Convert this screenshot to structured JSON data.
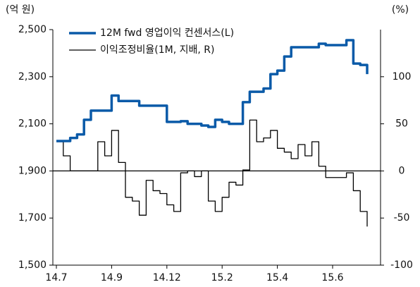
{
  "chart_data": {
    "type": "line",
    "ylabel": "(억 원)",
    "y2label": "(%)",
    "categories": [
      "14.7",
      null,
      null,
      null,
      null,
      null,
      null,
      null,
      "14.9",
      null,
      null,
      null,
      null,
      null,
      null,
      null,
      "14.12",
      null,
      null,
      null,
      null,
      null,
      null,
      null,
      "15.2",
      null,
      null,
      null,
      null,
      null,
      null,
      null,
      "15.4",
      null,
      null,
      null,
      null,
      null,
      null,
      null,
      "15.6",
      null,
      null,
      null,
      null,
      null
    ],
    "series": [
      {
        "name": "12M fwd 영업이익 컨센서스(L)",
        "color": "#0a5aa8",
        "width": 3.5,
        "axis": "y",
        "values": [
          2027,
          2027,
          2040,
          2055,
          2117,
          2156,
          2156,
          2156,
          2220,
          2197,
          2197,
          2197,
          2177,
          2177,
          2177,
          2177,
          2108,
          2108,
          2111,
          2100,
          2100,
          2093,
          2087,
          2117,
          2108,
          2100,
          2100,
          2192,
          2236,
          2236,
          2250,
          2311,
          2326,
          2386,
          2425,
          2425,
          2425,
          2425,
          2440,
          2434,
          2434,
          2434,
          2455,
          2356,
          2350,
          2311
        ]
      },
      {
        "name": "이익조정비율(1M, 지배, R)",
        "color": "#000000",
        "width": 1.3,
        "axis": "y2",
        "values": [
          31,
          16,
          0,
          0,
          0,
          0,
          31,
          16,
          43,
          9,
          -28,
          -32,
          -47,
          -10,
          -21,
          -24,
          -36,
          -43,
          -2,
          0,
          -6,
          0,
          -32,
          -43,
          -28,
          -12,
          -15,
          1,
          54,
          31,
          35,
          43,
          24,
          20,
          13,
          28,
          16,
          31,
          5,
          -7,
          -7,
          -7,
          -2,
          -21,
          -43,
          -59
        ]
      }
    ],
    "ylim": [
      1500,
      2500
    ],
    "yticks": [
      {
        "value": 1500,
        "label": "1,500"
      },
      {
        "value": 1700,
        "label": "1,700"
      },
      {
        "value": 1900,
        "label": "1,900"
      },
      {
        "value": 2100,
        "label": "2,100"
      },
      {
        "value": 2300,
        "label": "2,300"
      },
      {
        "value": 2500,
        "label": "2,500"
      }
    ],
    "y2lim": [
      -100,
      150
    ],
    "y2ticks": [
      -100,
      -50,
      0,
      50,
      100
    ],
    "y2_zero_line": true,
    "legend": "upper left"
  }
}
